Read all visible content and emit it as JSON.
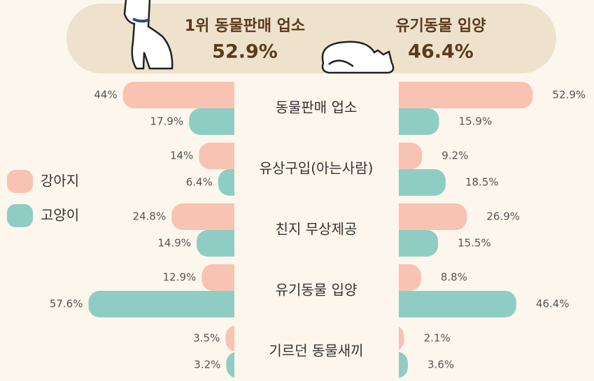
{
  "chart_data": {
    "type": "butterfly-bar",
    "headline": [
      {
        "label": "1위 동물판매 업소",
        "value": "52.9%"
      },
      {
        "label": "유기동물 입양",
        "value": "46.4%"
      }
    ],
    "legend": [
      {
        "name": "강아지",
        "color": "#f8c3b3"
      },
      {
        "name": "고양이",
        "color": "#8fcdc4"
      }
    ],
    "categories": [
      "동물판매 업소",
      "유상구입(아는사람)",
      "친지 무상제공",
      "유기동물 입양",
      "기르던 동물새끼"
    ],
    "left": {
      "series": [
        {
          "values": [
            44,
            14,
            24.8,
            12.9,
            3.5
          ],
          "value_labels": [
            "44%",
            "14%",
            "24.8%",
            "12.9%",
            "3.5%"
          ]
        },
        {
          "values": [
            17.9,
            6.4,
            14.9,
            57.6,
            3.2
          ],
          "value_labels": [
            "17.9%",
            "6.4%",
            "14.9%",
            "57.6%",
            "3.2%"
          ]
        }
      ]
    },
    "right": {
      "series": [
        {
          "values": [
            52.9,
            9.2,
            26.9,
            8.8,
            2.1
          ],
          "value_labels": [
            "52.9%",
            "9.2%",
            "26.9%",
            "8.8%",
            "2.1%"
          ]
        },
        {
          "values": [
            15.9,
            18.5,
            15.5,
            46.4,
            3.6
          ],
          "value_labels": [
            "15.9%",
            "18.5%",
            "15.5%",
            "46.4%",
            "3.6%"
          ]
        }
      ]
    }
  }
}
